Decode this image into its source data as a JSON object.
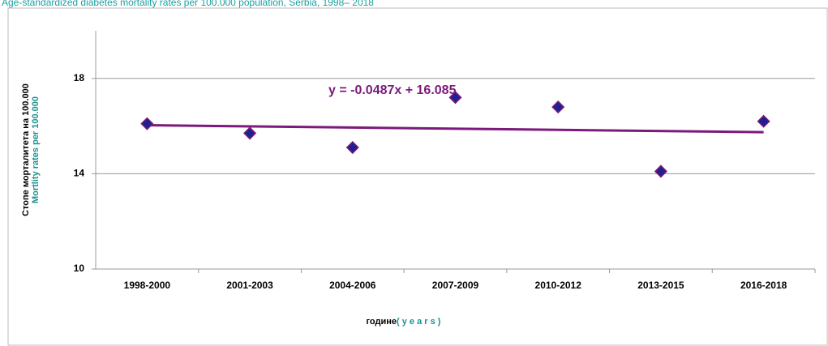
{
  "chart_data": {
    "type": "scatter",
    "title": "Age-standardized diabetes mortality rates  per 100.000 population, Serbia,  1998– 2018",
    "y_label": "Стопе морталитета  на 100.000",
    "y_label_en": "Mortlity rates per 100.000",
    "x_label": "године",
    "x_label_en": "( y e a r s )",
    "categories": [
      "1998-2000",
      "2001-2003",
      "2004-2006",
      "2007-2009",
      "2010-2012",
      "2013-2015",
      "2016-2018"
    ],
    "values": [
      16.1,
      15.7,
      15.1,
      17.2,
      16.8,
      14.1,
      16.2
    ],
    "color": "#1f1f8f",
    "trendline": {
      "label": "y = -0.0487x + 16.085",
      "slope": -0.0487,
      "intercept": 16.085,
      "color": "#7b1a7b"
    },
    "ylim": [
      10,
      20
    ],
    "yticks": [
      10,
      14,
      18
    ],
    "grid": true
  }
}
